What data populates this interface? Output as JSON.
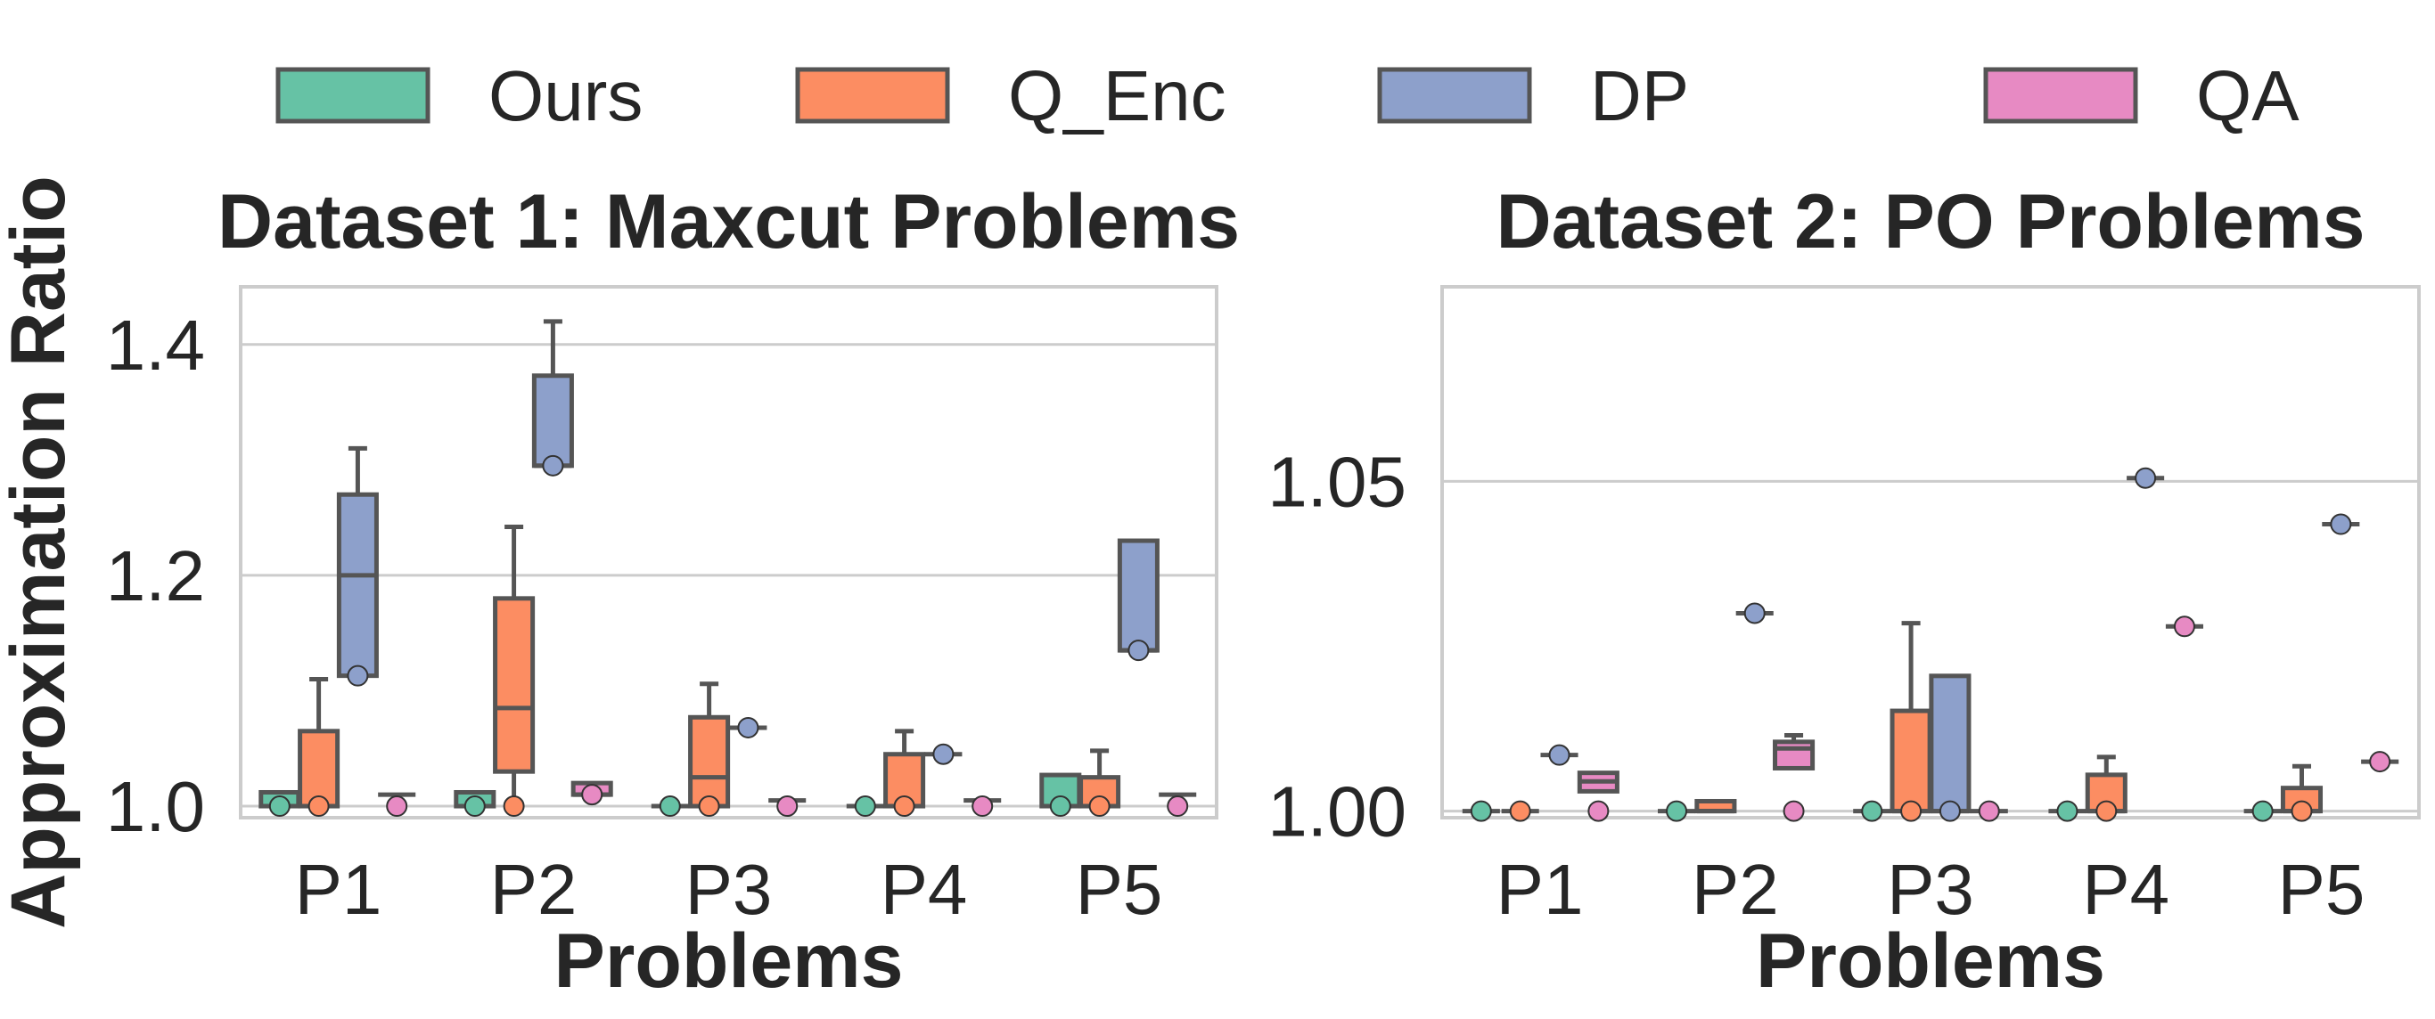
{
  "legend": [
    {
      "name": "Ours",
      "color": "#66c2a5"
    },
    {
      "name": "Q_Enc",
      "color": "#fc8d62"
    },
    {
      "name": "DP",
      "color": "#8da0cb"
    },
    {
      "name": "QA",
      "color": "#e78ac3"
    }
  ],
  "ylabel": "Approximation Ratio",
  "chart_data": [
    {
      "type": "box",
      "title": "Dataset 1: Maxcut Problems",
      "xlabel": "Problems",
      "ylabel": "Approximation Ratio",
      "categories": [
        "P1",
        "P2",
        "P3",
        "P4",
        "P5"
      ],
      "ylim": [
        0.99,
        1.45
      ],
      "yticks": [
        1.0,
        1.2,
        1.4
      ],
      "ytick_labels": [
        "1.0",
        "1.2",
        "1.4"
      ],
      "grid": true,
      "legend_position": "top",
      "series": [
        {
          "name": "Ours",
          "color": "#66c2a5",
          "boxes": [
            {
              "q1": 1.0,
              "median": 1.0,
              "q3": 1.012,
              "whisker_low": 1.0,
              "whisker_high": 1.012,
              "points": [
                1.0
              ]
            },
            {
              "q1": 1.0,
              "median": 1.0,
              "q3": 1.012,
              "whisker_low": 1.0,
              "whisker_high": 1.012,
              "points": [
                1.0
              ]
            },
            {
              "q1": 1.0,
              "median": 1.0,
              "q3": 1.0,
              "whisker_low": 1.0,
              "whisker_high": 1.0,
              "points": [
                1.0
              ]
            },
            {
              "q1": 1.0,
              "median": 1.0,
              "q3": 1.0,
              "whisker_low": 1.0,
              "whisker_high": 1.0,
              "points": [
                1.0
              ]
            },
            {
              "q1": 1.0,
              "median": 1.0,
              "q3": 1.027,
              "whisker_low": 1.0,
              "whisker_high": 1.027,
              "points": [
                1.0
              ]
            }
          ]
        },
        {
          "name": "Q_Enc",
          "color": "#fc8d62",
          "boxes": [
            {
              "q1": 1.0,
              "median": 1.0,
              "q3": 1.065,
              "whisker_low": 1.0,
              "whisker_high": 1.11,
              "points": [
                1.0
              ]
            },
            {
              "q1": 1.03,
              "median": 1.085,
              "q3": 1.18,
              "whisker_low": 1.0,
              "whisker_high": 1.242,
              "points": [
                1.0
              ]
            },
            {
              "q1": 1.0,
              "median": 1.025,
              "q3": 1.077,
              "whisker_low": 1.0,
              "whisker_high": 1.106,
              "points": [
                1.0
              ]
            },
            {
              "q1": 1.0,
              "median": 1.0,
              "q3": 1.045,
              "whisker_low": 1.0,
              "whisker_high": 1.065,
              "points": [
                1.0
              ]
            },
            {
              "q1": 1.0,
              "median": 1.0,
              "q3": 1.025,
              "whisker_low": 1.0,
              "whisker_high": 1.048,
              "points": [
                1.0
              ]
            }
          ]
        },
        {
          "name": "DP",
          "color": "#8da0cb",
          "boxes": [
            {
              "q1": 1.113,
              "median": 1.2,
              "q3": 1.27,
              "whisker_low": 1.113,
              "whisker_high": 1.31,
              "points": [
                1.113
              ]
            },
            {
              "q1": 1.295,
              "median": 1.295,
              "q3": 1.373,
              "whisker_low": 1.295,
              "whisker_high": 1.42,
              "points": [
                1.295
              ]
            },
            {
              "q1": 1.068,
              "median": 1.068,
              "q3": 1.068,
              "whisker_low": 1.068,
              "whisker_high": 1.068,
              "points": [
                1.068
              ]
            },
            {
              "q1": 1.045,
              "median": 1.045,
              "q3": 1.045,
              "whisker_low": 1.045,
              "whisker_high": 1.045,
              "points": [
                1.045
              ]
            },
            {
              "q1": 1.135,
              "median": 1.135,
              "q3": 1.23,
              "whisker_low": 1.135,
              "whisker_high": 1.23,
              "points": [
                1.135
              ]
            }
          ]
        },
        {
          "name": "QA",
          "color": "#e78ac3",
          "boxes": [
            {
              "q1": 1.01,
              "median": 1.01,
              "q3": 1.01,
              "whisker_low": 1.01,
              "whisker_high": 1.01,
              "points": [
                1.0
              ]
            },
            {
              "q1": 1.01,
              "median": 1.01,
              "q3": 1.02,
              "whisker_low": 1.01,
              "whisker_high": 1.02,
              "points": [
                1.01
              ]
            },
            {
              "q1": 1.005,
              "median": 1.005,
              "q3": 1.005,
              "whisker_low": 1.005,
              "whisker_high": 1.005,
              "points": [
                1.0
              ]
            },
            {
              "q1": 1.005,
              "median": 1.005,
              "q3": 1.005,
              "whisker_low": 1.005,
              "whisker_high": 1.005,
              "points": [
                1.0
              ]
            },
            {
              "q1": 1.01,
              "median": 1.01,
              "q3": 1.01,
              "whisker_low": 1.01,
              "whisker_high": 1.01,
              "points": [
                1.0
              ]
            }
          ]
        }
      ]
    },
    {
      "type": "box",
      "title": "Dataset 2: PO Problems",
      "xlabel": "Problems",
      "ylabel": "",
      "categories": [
        "P1",
        "P2",
        "P3",
        "P4",
        "P5"
      ],
      "ylim": [
        0.999,
        1.0795
      ],
      "yticks": [
        1.0,
        1.05
      ],
      "ytick_labels": [
        "1.00",
        "1.05"
      ],
      "grid": true,
      "legend_position": "top",
      "series": [
        {
          "name": "Ours",
          "color": "#66c2a5",
          "boxes": [
            {
              "q1": 1.0,
              "median": 1.0,
              "q3": 1.0,
              "whisker_low": 1.0,
              "whisker_high": 1.0,
              "points": [
                1.0
              ]
            },
            {
              "q1": 1.0,
              "median": 1.0,
              "q3": 1.0,
              "whisker_low": 1.0,
              "whisker_high": 1.0,
              "points": [
                1.0
              ]
            },
            {
              "q1": 1.0,
              "median": 1.0,
              "q3": 1.0,
              "whisker_low": 1.0,
              "whisker_high": 1.0,
              "points": [
                1.0
              ]
            },
            {
              "q1": 1.0,
              "median": 1.0,
              "q3": 1.0,
              "whisker_low": 1.0,
              "whisker_high": 1.0,
              "points": [
                1.0
              ]
            },
            {
              "q1": 1.0,
              "median": 1.0,
              "q3": 1.0,
              "whisker_low": 1.0,
              "whisker_high": 1.0,
              "points": [
                1.0
              ]
            }
          ]
        },
        {
          "name": "Q_Enc",
          "color": "#fc8d62",
          "boxes": [
            {
              "q1": 1.0,
              "median": 1.0,
              "q3": 1.0,
              "whisker_low": 1.0,
              "whisker_high": 1.0,
              "points": [
                1.0
              ]
            },
            {
              "q1": 1.0,
              "median": 1.0,
              "q3": 1.0015,
              "whisker_low": 1.0,
              "whisker_high": 1.0015,
              "points": []
            },
            {
              "q1": 1.0,
              "median": 1.0,
              "q3": 1.0152,
              "whisker_low": 1.0,
              "whisker_high": 1.0285,
              "points": [
                1.0
              ]
            },
            {
              "q1": 1.0,
              "median": 1.0,
              "q3": 1.0055,
              "whisker_low": 1.0,
              "whisker_high": 1.0082,
              "points": [
                1.0
              ]
            },
            {
              "q1": 1.0,
              "median": 1.0,
              "q3": 1.0035,
              "whisker_low": 1.0,
              "whisker_high": 1.0068,
              "points": [
                1.0
              ]
            }
          ]
        },
        {
          "name": "DP",
          "color": "#8da0cb",
          "boxes": [
            {
              "q1": 1.0085,
              "median": 1.0085,
              "q3": 1.0085,
              "whisker_low": 1.0085,
              "whisker_high": 1.0085,
              "points": [
                1.0085
              ]
            },
            {
              "q1": 1.03,
              "median": 1.03,
              "q3": 1.03,
              "whisker_low": 1.03,
              "whisker_high": 1.03,
              "points": [
                1.03
              ]
            },
            {
              "q1": 1.0,
              "median": 1.0,
              "q3": 1.0205,
              "whisker_low": 1.0,
              "whisker_high": 1.0205,
              "points": [
                1.0
              ]
            },
            {
              "q1": 1.0505,
              "median": 1.0505,
              "q3": 1.0505,
              "whisker_low": 1.0505,
              "whisker_high": 1.0505,
              "points": [
                1.0505
              ]
            },
            {
              "q1": 1.0435,
              "median": 1.0435,
              "q3": 1.0435,
              "whisker_low": 1.0435,
              "whisker_high": 1.0435,
              "points": [
                1.0435
              ]
            }
          ]
        },
        {
          "name": "QA",
          "color": "#e78ac3",
          "boxes": [
            {
              "q1": 1.003,
              "median": 1.0045,
              "q3": 1.0058,
              "whisker_low": 1.003,
              "whisker_high": 1.0058,
              "points": [
                1.0
              ]
            },
            {
              "q1": 1.0065,
              "median": 1.0095,
              "q3": 1.0105,
              "whisker_low": 1.0065,
              "whisker_high": 1.0115,
              "points": [
                1.0
              ]
            },
            {
              "q1": 1.0,
              "median": 1.0,
              "q3": 1.0,
              "whisker_low": 1.0,
              "whisker_high": 1.0,
              "points": [
                1.0
              ]
            },
            {
              "q1": 1.028,
              "median": 1.028,
              "q3": 1.028,
              "whisker_low": 1.028,
              "whisker_high": 1.028,
              "points": [
                1.028
              ]
            },
            {
              "q1": 1.0075,
              "median": 1.0075,
              "q3": 1.0075,
              "whisker_low": 1.0075,
              "whisker_high": 1.0075,
              "points": [
                1.0075
              ]
            }
          ]
        }
      ]
    }
  ]
}
